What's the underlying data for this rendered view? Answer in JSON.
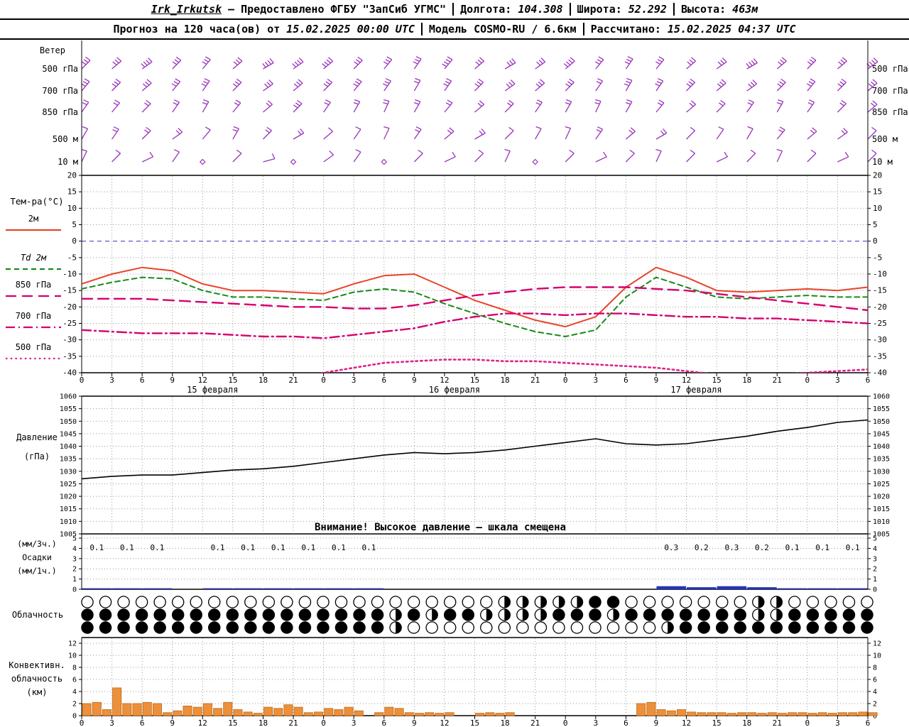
{
  "header": {
    "station": "Irk_Irkutsk",
    "provider": "— Предоставлено ФГБУ \"ЗапСиб УГМС\"",
    "longitude_label": "Долгота:",
    "longitude": "104.308",
    "latitude_label": "Широта:",
    "latitude": "52.292",
    "height_label": "Высота:",
    "height": "463м",
    "forecast_label": "Прогноз на 120 часа(ов) от",
    "forecast_date": "15.02.2025 00:00 UTC",
    "model_label": "Модель",
    "model_name": "COSMO-RU",
    "model_res": "/ 6.6км",
    "calc_label": "Рассчитано:",
    "calc_date": "15.02.2025 04:37 UTC"
  },
  "chart_data": [
    {
      "id": "wind",
      "type": "barbs",
      "label": "Ветер",
      "color": "#9933bb",
      "levels": [
        {
          "label": "500 гПа",
          "dirs": [
            45,
            50,
            55,
            45,
            40,
            50,
            60,
            55,
            50,
            45,
            40,
            35,
            40,
            50,
            60,
            55,
            50,
            40,
            35,
            40,
            50,
            55,
            60,
            50,
            45,
            50,
            55
          ],
          "speeds": [
            18,
            20,
            22,
            20,
            18,
            20,
            22,
            25,
            22,
            20,
            18,
            20,
            22,
            20,
            18,
            20,
            22,
            20,
            18,
            16,
            18,
            20,
            22,
            20,
            18,
            20,
            22
          ]
        },
        {
          "label": "700 гПа",
          "dirs": [
            40,
            45,
            50,
            40,
            35,
            45,
            55,
            50,
            45,
            40,
            35,
            30,
            35,
            45,
            55,
            50,
            45,
            35,
            30,
            35,
            45,
            50,
            55,
            45,
            40,
            45,
            50
          ],
          "speeds": [
            15,
            16,
            18,
            16,
            15,
            16,
            18,
            20,
            18,
            16,
            15,
            14,
            15,
            16,
            18,
            16,
            15,
            14,
            15,
            16,
            18,
            16,
            15,
            16,
            18,
            16,
            15
          ]
        },
        {
          "label": "850 гПа",
          "dirs": [
            35,
            40,
            45,
            35,
            30,
            40,
            50,
            45,
            35,
            30,
            25,
            30,
            40,
            50,
            45,
            35,
            30,
            25,
            30,
            40,
            50,
            45,
            35,
            30,
            35,
            45,
            50
          ],
          "speeds": [
            10,
            12,
            14,
            12,
            10,
            12,
            14,
            15,
            12,
            10,
            9,
            10,
            12,
            14,
            12,
            10,
            9,
            10,
            12,
            14,
            12,
            10,
            9,
            10,
            12,
            14,
            12
          ]
        },
        {
          "label": "500 м",
          "dirs": [
            30,
            35,
            45,
            55,
            40,
            30,
            45,
            60,
            50,
            35,
            25,
            35,
            50,
            60,
            45,
            30,
            25,
            35,
            50,
            60,
            45,
            35,
            30,
            40,
            50,
            55,
            45
          ],
          "speeds": [
            8,
            10,
            12,
            10,
            8,
            10,
            12,
            10,
            8,
            7,
            8,
            10,
            12,
            10,
            8,
            7,
            8,
            10,
            12,
            10,
            8,
            7,
            8,
            10,
            12,
            10,
            8
          ]
        },
        {
          "label": "10 м",
          "dirs": [
            25,
            45,
            65,
            35,
            0,
            45,
            75,
            0,
            55,
            35,
            0,
            45,
            65,
            45,
            25,
            0,
            45,
            65,
            45,
            25,
            45,
            65,
            45,
            25,
            45,
            65,
            45
          ],
          "speeds": [
            5,
            6,
            7,
            5,
            0,
            6,
            7,
            0,
            6,
            5,
            0,
            6,
            7,
            6,
            5,
            0,
            6,
            7,
            6,
            5,
            6,
            7,
            6,
            5,
            6,
            7,
            6
          ]
        }
      ]
    },
    {
      "id": "temperature",
      "type": "line",
      "label": "Тем-ра(°C)",
      "hours": [
        0,
        3,
        6,
        9,
        12,
        15,
        18,
        21,
        24,
        27,
        30,
        33,
        36,
        39,
        42,
        45,
        48,
        51,
        54,
        57,
        60,
        63,
        66,
        69,
        72,
        75,
        78
      ],
      "tick_labels": [
        "0",
        "3",
        "6",
        "9",
        "12",
        "15",
        "18",
        "21",
        "0",
        "3",
        "6",
        "9",
        "12",
        "15",
        "18",
        "21",
        "0",
        "3",
        "6",
        "9",
        "12",
        "15",
        "18",
        "21",
        "0",
        "3",
        "6"
      ],
      "dates": [
        {
          "label": "15 февраля",
          "hour": 12
        },
        {
          "label": "16 февраля",
          "hour": 36
        },
        {
          "label": "17 февраля",
          "hour": 60
        }
      ],
      "ylim": [
        -40,
        20
      ],
      "ytick_step": 5,
      "zero_line_color": "#4444cc",
      "series": [
        {
          "name": "2м",
          "color": "#e8442a",
          "style": "solid",
          "width": 2,
          "values": [
            -13,
            -10,
            -8,
            -9,
            -13,
            -15,
            -15,
            -15.5,
            -16,
            -13,
            -10.5,
            -10,
            -14,
            -18,
            -21,
            -24,
            -26,
            -23,
            -14,
            -8,
            -11,
            -15,
            -15.5,
            -15,
            -14.5,
            -15,
            -14
          ]
        },
        {
          "name": "Td 2м",
          "color": "#188a18",
          "style": "dashed",
          "width": 2,
          "values": [
            -14.5,
            -12.5,
            -11,
            -11.5,
            -15,
            -17,
            -17,
            -17.5,
            -18,
            -15.5,
            -14.5,
            -15.5,
            -19,
            -22,
            -25,
            -27.5,
            -29,
            -27,
            -17,
            -11,
            -14,
            -17,
            -17.5,
            -17,
            -16.5,
            -17,
            -17
          ]
        },
        {
          "name": "850 гПа",
          "color": "#d6006e",
          "style": "longdash",
          "width": 2.4,
          "values": [
            -17.5,
            -17.5,
            -17.5,
            -18,
            -18.5,
            -19,
            -19.5,
            -20,
            -20,
            -20.5,
            -20.5,
            -19.5,
            -18,
            -16.5,
            -15.5,
            -14.5,
            -14,
            -14,
            -14,
            -14.5,
            -15,
            -16,
            -17,
            -18,
            -19,
            -20,
            -21
          ]
        },
        {
          "name": "700 гПа",
          "color": "#d6006e",
          "style": "dashdot",
          "width": 2.4,
          "values": [
            -27,
            -27.5,
            -28,
            -28,
            -28,
            -28.5,
            -29,
            -29,
            -29.5,
            -28.5,
            -27.5,
            -26.5,
            -24.5,
            -23,
            -22,
            -22,
            -22.5,
            -22,
            -22,
            -22.5,
            -23,
            -23,
            -23.5,
            -23.5,
            -24,
            -24.5,
            -25
          ]
        },
        {
          "name": "500 гПа",
          "color": "#e0218a",
          "style": "dotted",
          "width": 2.6,
          "values": [
            null,
            null,
            null,
            null,
            null,
            null,
            null,
            -41.5,
            -40,
            -38.5,
            -37,
            -36.5,
            -36,
            -36,
            -36.5,
            -36.5,
            -37,
            -37.5,
            -38,
            -38.5,
            -39.5,
            -40.5,
            -41,
            -40.5,
            -40,
            -39.5,
            -39
          ]
        }
      ]
    },
    {
      "id": "pressure",
      "type": "line",
      "label": "Давление",
      "unit": "(гПа)",
      "ylim": [
        1005,
        1060
      ],
      "ytick_step": 5,
      "warning": "Внимание! Высокое давление — шкала смещена",
      "series": [
        {
          "name": "Давление",
          "color": "#000000",
          "width": 1.6,
          "values": [
            1027,
            1028,
            1028.5,
            1028.5,
            1029.5,
            1030.5,
            1031,
            1032,
            1033.5,
            1035,
            1036.5,
            1037.5,
            1037,
            1037.5,
            1038.5,
            1040,
            1041.5,
            1043,
            1041,
            1040.5,
            1041,
            1042.5,
            1044,
            1046,
            1047.5,
            1049.5,
            1050.5
          ]
        }
      ]
    },
    {
      "id": "precipitation",
      "type": "bar",
      "labels": [
        "(мм/3ч.)",
        "Осадки",
        "(мм/1ч.)"
      ],
      "ylim": [
        0,
        5
      ],
      "bar_color": "#2233bb",
      "intervals": [
        {
          "h": 0,
          "v": 0.1
        },
        {
          "h": 3,
          "v": 0.1
        },
        {
          "h": 6,
          "v": 0.1
        },
        {
          "h": 12,
          "v": 0.1
        },
        {
          "h": 15,
          "v": 0.1
        },
        {
          "h": 18,
          "v": 0.1
        },
        {
          "h": 21,
          "v": 0.1
        },
        {
          "h": 24,
          "v": 0.1
        },
        {
          "h": 27,
          "v": 0.1
        },
        {
          "h": 57,
          "v": 0.3
        },
        {
          "h": 60,
          "v": 0.2
        },
        {
          "h": 63,
          "v": 0.3
        },
        {
          "h": 66,
          "v": 0.2
        },
        {
          "h": 69,
          "v": 0.1
        },
        {
          "h": 72,
          "v": 0.1
        },
        {
          "h": 75,
          "v": 0.1
        }
      ]
    },
    {
      "id": "cloudiness",
      "type": "symbols",
      "label": "Облачность",
      "rows": [
        "eeeeeeeeeeeeeeeeeeeeeeehhhhhffeeeeeeehheeeee",
        "fffffffffffffffffhfhffhhhhfffhfffffffhhfffff",
        "fffffffffffffffffheeeeeeeeeeeeeehfffffffffff"
      ]
    },
    {
      "id": "convective",
      "type": "bar",
      "labels": [
        "Конвективн.",
        "облачность",
        "(км)"
      ],
      "ylim": [
        0,
        12
      ],
      "ytick_step": 2,
      "bar_color": "#ee8f3a",
      "bar_edge": "#b96a1a",
      "values_hourly": [
        2.0,
        2.2,
        1.0,
        4.6,
        2.0,
        2.0,
        2.2,
        2.0,
        0.5,
        0.8,
        1.6,
        1.4,
        2.0,
        1.2,
        2.2,
        1.0,
        0.6,
        0.4,
        1.4,
        1.2,
        1.8,
        1.4,
        0.5,
        0.6,
        1.2,
        1.0,
        1.4,
        0.8,
        0,
        0.5,
        1.4,
        1.2,
        0.5,
        0.4,
        0.5,
        0.4,
        0.5,
        0,
        0,
        0.4,
        0.5,
        0.4,
        0.5,
        0,
        0,
        0,
        0,
        0,
        0,
        0,
        0,
        0,
        0,
        0,
        0,
        2.0,
        2.2,
        1.0,
        0.8,
        1.0,
        0.6,
        0.5,
        0.5,
        0.5,
        0.4,
        0.5,
        0.5,
        0.4,
        0.5,
        0.4,
        0.5,
        0.5,
        0.4,
        0.5,
        0.4,
        0.5,
        0.5,
        0.6,
        0.5
      ]
    }
  ]
}
